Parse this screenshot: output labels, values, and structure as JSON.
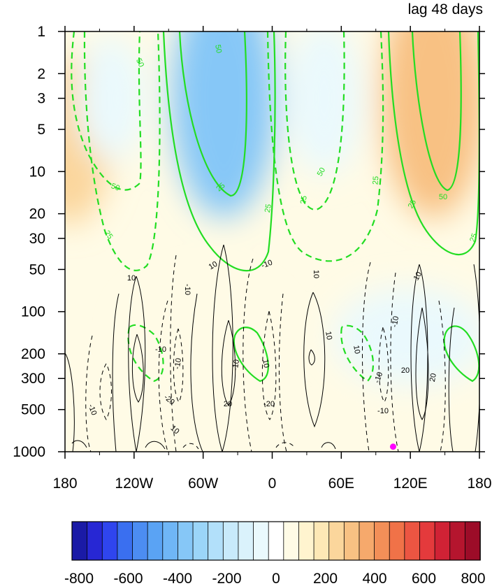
{
  "chart_data": {
    "type": "heatmap",
    "title": "lag 48 days",
    "x_ticks": [
      {
        "lon": -180,
        "label": "180"
      },
      {
        "lon": -120,
        "label": "120W"
      },
      {
        "lon": -60,
        "label": "60W"
      },
      {
        "lon": 0,
        "label": "0"
      },
      {
        "lon": 60,
        "label": "60E"
      },
      {
        "lon": 120,
        "label": "120E"
      },
      {
        "lon": 180,
        "label": "180"
      }
    ],
    "y_ticks": [
      {
        "p": 1,
        "label": "1"
      },
      {
        "p": 2,
        "label": "2"
      },
      {
        "p": 3,
        "label": "3"
      },
      {
        "p": 5,
        "label": "5"
      },
      {
        "p": 10,
        "label": "10"
      },
      {
        "p": 20,
        "label": "20"
      },
      {
        "p": 30,
        "label": "30"
      },
      {
        "p": 50,
        "label": "50"
      },
      {
        "p": 100,
        "label": "100"
      },
      {
        "p": 200,
        "label": "200"
      },
      {
        "p": 300,
        "label": "300"
      },
      {
        "p": 500,
        "label": "500"
      },
      {
        "p": 1000,
        "label": "1000"
      }
    ],
    "xlim": [
      -180,
      180
    ],
    "ylim": [
      1000,
      1
    ],
    "y_scale": "log",
    "colorbar": {
      "placement": "bottom",
      "range": [
        -800,
        800
      ],
      "labels": [
        "-800",
        "-600",
        "-400",
        "-200",
        "0",
        "200",
        "400",
        "600",
        "800"
      ],
      "colors": [
        "#1a1aa6",
        "#2727d4",
        "#2f45ee",
        "#3a6ff0",
        "#4c8df2",
        "#5aa3f4",
        "#6fb6f6",
        "#86c7f7",
        "#9bd5f8",
        "#b2e0fa",
        "#c8eafb",
        "#daf2fc",
        "#eaf9fd",
        "#ffffff",
        "#fffbe6",
        "#fff4cf",
        "#fde8b6",
        "#fbd69c",
        "#f8c183",
        "#f6a96c",
        "#f38f58",
        "#f07248",
        "#ec5542",
        "#e43a3c",
        "#d02235",
        "#b5152e",
        "#9c0c28"
      ]
    },
    "shading_regions": [
      {
        "lon": -176,
        "p": 6,
        "value": 260
      },
      {
        "lon": -140,
        "p": 3,
        "value": -60
      },
      {
        "lon": -42,
        "p": 3,
        "value": -330
      },
      {
        "lon": 45,
        "p": 3,
        "value": -40
      },
      {
        "lon": 140,
        "p": 3,
        "value": 320
      },
      {
        "lon": -60,
        "p": 150,
        "value": 70
      },
      {
        "lon": 120,
        "p": 150,
        "value": -60
      },
      {
        "lon": 0,
        "p": 850,
        "value": 40
      }
    ],
    "contour_labels": {
      "green": [
        "50",
        "50",
        "25",
        "50",
        "25",
        "25",
        "50",
        "25",
        "25",
        "50",
        "25",
        "25"
      ],
      "black": [
        "10",
        "-10",
        "10",
        "-10",
        "10",
        "-10",
        "10",
        "-10",
        "20",
        "-20",
        "-20",
        "10",
        "-10",
        "10",
        "10",
        "-10",
        "-10",
        "10",
        "20",
        "20",
        "-10",
        "-10"
      ]
    },
    "marker": {
      "lon": 105,
      "p": 920,
      "color": "#ff00ff"
    }
  }
}
